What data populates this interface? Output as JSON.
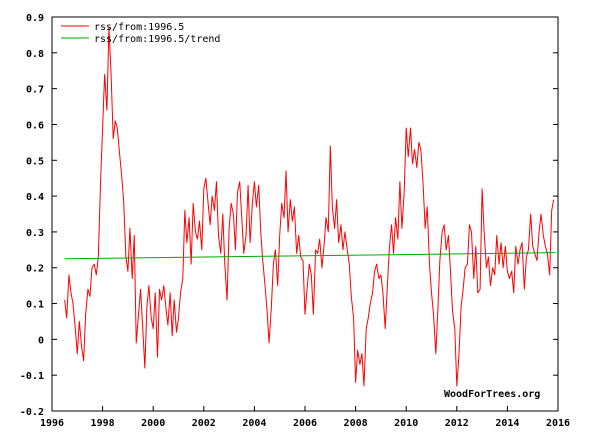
{
  "chart_data": {
    "type": "line",
    "title": "",
    "xlabel": "",
    "ylabel": "",
    "xlim": [
      1996,
      2016
    ],
    "ylim": [
      -0.2,
      0.9
    ],
    "x_ticks": [
      1996,
      1998,
      2000,
      2002,
      2004,
      2006,
      2008,
      2010,
      2012,
      2014,
      2016
    ],
    "y_ticks": [
      -0.2,
      -0.1,
      0,
      0.1,
      0.2,
      0.3,
      0.4,
      0.5,
      0.6,
      0.7,
      0.8,
      0.9
    ],
    "x_tick_labels": [
      "1996",
      "1998",
      "2000",
      "2002",
      "2004",
      "2006",
      "2008",
      "2010",
      "2012",
      "2014",
      "2016"
    ],
    "y_tick_labels": [
      "-0.2",
      "-0.1",
      "0",
      "0.1",
      "0.2",
      "0.3",
      "0.4",
      "0.5",
      "0.6",
      "0.7",
      "0.8",
      "0.9"
    ],
    "grid": false,
    "legend_position": "top-left",
    "annotation": "WoodForTrees.org",
    "series": [
      {
        "name": "rss/from:1996.5",
        "color": "#ff0000",
        "points": [
          [
            1996.5,
            0.11
          ],
          [
            1996.58,
            0.06
          ],
          [
            1996.67,
            0.18
          ],
          [
            1996.75,
            0.13
          ],
          [
            1996.83,
            0.1
          ],
          [
            1996.92,
            0.03
          ],
          [
            1997.0,
            -0.04
          ],
          [
            1997.08,
            0.05
          ],
          [
            1997.17,
            -0.02
          ],
          [
            1997.25,
            -0.06
          ],
          [
            1997.33,
            0.07
          ],
          [
            1997.42,
            0.14
          ],
          [
            1997.5,
            0.12
          ],
          [
            1997.58,
            0.2
          ],
          [
            1997.67,
            0.21
          ],
          [
            1997.75,
            0.18
          ],
          [
            1997.83,
            0.23
          ],
          [
            1997.92,
            0.44
          ],
          [
            1998.0,
            0.59
          ],
          [
            1998.08,
            0.74
          ],
          [
            1998.17,
            0.64
          ],
          [
            1998.25,
            0.87
          ],
          [
            1998.33,
            0.75
          ],
          [
            1998.42,
            0.56
          ],
          [
            1998.5,
            0.61
          ],
          [
            1998.58,
            0.59
          ],
          [
            1998.67,
            0.52
          ],
          [
            1998.75,
            0.46
          ],
          [
            1998.83,
            0.39
          ],
          [
            1998.92,
            0.23
          ],
          [
            1999.0,
            0.19
          ],
          [
            1999.08,
            0.31
          ],
          [
            1999.17,
            0.17
          ],
          [
            1999.25,
            0.29
          ],
          [
            1999.33,
            -0.01
          ],
          [
            1999.42,
            0.07
          ],
          [
            1999.5,
            0.14
          ],
          [
            1999.58,
            0.04
          ],
          [
            1999.67,
            -0.08
          ],
          [
            1999.75,
            0.09
          ],
          [
            1999.83,
            0.15
          ],
          [
            1999.92,
            0.06
          ],
          [
            2000.0,
            0.03
          ],
          [
            2000.08,
            0.13
          ],
          [
            2000.17,
            -0.05
          ],
          [
            2000.25,
            0.14
          ],
          [
            2000.33,
            0.11
          ],
          [
            2000.42,
            0.15
          ],
          [
            2000.5,
            0.09
          ],
          [
            2000.58,
            0.04
          ],
          [
            2000.67,
            0.13
          ],
          [
            2000.75,
            0.01
          ],
          [
            2000.83,
            0.11
          ],
          [
            2000.92,
            0.02
          ],
          [
            2001.0,
            0.06
          ],
          [
            2001.08,
            0.13
          ],
          [
            2001.17,
            0.17
          ],
          [
            2001.25,
            0.36
          ],
          [
            2001.33,
            0.27
          ],
          [
            2001.42,
            0.34
          ],
          [
            2001.5,
            0.21
          ],
          [
            2001.58,
            0.38
          ],
          [
            2001.67,
            0.3
          ],
          [
            2001.75,
            0.28
          ],
          [
            2001.83,
            0.33
          ],
          [
            2001.92,
            0.25
          ],
          [
            2002.0,
            0.42
          ],
          [
            2002.08,
            0.45
          ],
          [
            2002.17,
            0.38
          ],
          [
            2002.25,
            0.32
          ],
          [
            2002.33,
            0.4
          ],
          [
            2002.42,
            0.36
          ],
          [
            2002.5,
            0.44
          ],
          [
            2002.58,
            0.29
          ],
          [
            2002.67,
            0.24
          ],
          [
            2002.75,
            0.35
          ],
          [
            2002.83,
            0.21
          ],
          [
            2002.92,
            0.11
          ],
          [
            2003.0,
            0.31
          ],
          [
            2003.08,
            0.38
          ],
          [
            2003.17,
            0.35
          ],
          [
            2003.25,
            0.25
          ],
          [
            2003.33,
            0.41
          ],
          [
            2003.42,
            0.44
          ],
          [
            2003.5,
            0.34
          ],
          [
            2003.58,
            0.24
          ],
          [
            2003.67,
            0.29
          ],
          [
            2003.75,
            0.43
          ],
          [
            2003.83,
            0.27
          ],
          [
            2003.92,
            0.38
          ],
          [
            2004.0,
            0.44
          ],
          [
            2004.08,
            0.37
          ],
          [
            2004.17,
            0.43
          ],
          [
            2004.25,
            0.3
          ],
          [
            2004.33,
            0.22
          ],
          [
            2004.42,
            0.15
          ],
          [
            2004.5,
            0.08
          ],
          [
            2004.58,
            -0.01
          ],
          [
            2004.67,
            0.09
          ],
          [
            2004.75,
            0.21
          ],
          [
            2004.83,
            0.25
          ],
          [
            2004.92,
            0.15
          ],
          [
            2005.0,
            0.29
          ],
          [
            2005.08,
            0.38
          ],
          [
            2005.17,
            0.34
          ],
          [
            2005.25,
            0.47
          ],
          [
            2005.33,
            0.3
          ],
          [
            2005.42,
            0.39
          ],
          [
            2005.5,
            0.33
          ],
          [
            2005.58,
            0.37
          ],
          [
            2005.67,
            0.24
          ],
          [
            2005.75,
            0.29
          ],
          [
            2005.83,
            0.23
          ],
          [
            2005.92,
            0.22
          ],
          [
            2006.0,
            0.07
          ],
          [
            2006.08,
            0.14
          ],
          [
            2006.17,
            0.21
          ],
          [
            2006.25,
            0.18
          ],
          [
            2006.33,
            0.07
          ],
          [
            2006.42,
            0.25
          ],
          [
            2006.5,
            0.24
          ],
          [
            2006.58,
            0.28
          ],
          [
            2006.67,
            0.2
          ],
          [
            2006.75,
            0.26
          ],
          [
            2006.83,
            0.34
          ],
          [
            2006.92,
            0.3
          ],
          [
            2007.0,
            0.54
          ],
          [
            2007.08,
            0.37
          ],
          [
            2007.17,
            0.31
          ],
          [
            2007.25,
            0.39
          ],
          [
            2007.33,
            0.27
          ],
          [
            2007.42,
            0.32
          ],
          [
            2007.5,
            0.25
          ],
          [
            2007.58,
            0.3
          ],
          [
            2007.67,
            0.25
          ],
          [
            2007.75,
            0.21
          ],
          [
            2007.83,
            0.12
          ],
          [
            2007.92,
            0.06
          ],
          [
            2008.0,
            -0.12
          ],
          [
            2008.08,
            -0.03
          ],
          [
            2008.17,
            -0.07
          ],
          [
            2008.25,
            -0.04
          ],
          [
            2008.33,
            -0.13
          ],
          [
            2008.42,
            0.03
          ],
          [
            2008.5,
            0.06
          ],
          [
            2008.58,
            0.1
          ],
          [
            2008.67,
            0.13
          ],
          [
            2008.75,
            0.19
          ],
          [
            2008.83,
            0.21
          ],
          [
            2008.92,
            0.17
          ],
          [
            2009.0,
            0.18
          ],
          [
            2009.08,
            0.13
          ],
          [
            2009.17,
            0.03
          ],
          [
            2009.25,
            0.14
          ],
          [
            2009.33,
            0.25
          ],
          [
            2009.42,
            0.32
          ],
          [
            2009.5,
            0.24
          ],
          [
            2009.58,
            0.34
          ],
          [
            2009.67,
            0.28
          ],
          [
            2009.75,
            0.44
          ],
          [
            2009.83,
            0.31
          ],
          [
            2009.92,
            0.41
          ],
          [
            2010.0,
            0.59
          ],
          [
            2010.08,
            0.51
          ],
          [
            2010.17,
            0.59
          ],
          [
            2010.25,
            0.49
          ],
          [
            2010.33,
            0.53
          ],
          [
            2010.42,
            0.48
          ],
          [
            2010.5,
            0.55
          ],
          [
            2010.58,
            0.53
          ],
          [
            2010.67,
            0.43
          ],
          [
            2010.75,
            0.31
          ],
          [
            2010.83,
            0.37
          ],
          [
            2010.92,
            0.21
          ],
          [
            2011.0,
            0.13
          ],
          [
            2011.08,
            0.07
          ],
          [
            2011.17,
            -0.04
          ],
          [
            2011.25,
            0.08
          ],
          [
            2011.33,
            0.22
          ],
          [
            2011.42,
            0.3
          ],
          [
            2011.5,
            0.32
          ],
          [
            2011.58,
            0.25
          ],
          [
            2011.67,
            0.29
          ],
          [
            2011.75,
            0.19
          ],
          [
            2011.83,
            0.08
          ],
          [
            2011.92,
            0.03
          ],
          [
            2012.0,
            -0.13
          ],
          [
            2012.08,
            -0.05
          ],
          [
            2012.17,
            0.09
          ],
          [
            2012.25,
            0.14
          ],
          [
            2012.33,
            0.2
          ],
          [
            2012.42,
            0.21
          ],
          [
            2012.5,
            0.32
          ],
          [
            2012.58,
            0.3
          ],
          [
            2012.67,
            0.17
          ],
          [
            2012.75,
            0.26
          ],
          [
            2012.83,
            0.13
          ],
          [
            2012.92,
            0.14
          ],
          [
            2013.0,
            0.42
          ],
          [
            2013.08,
            0.3
          ],
          [
            2013.17,
            0.2
          ],
          [
            2013.25,
            0.23
          ],
          [
            2013.33,
            0.15
          ],
          [
            2013.42,
            0.2
          ],
          [
            2013.5,
            0.18
          ],
          [
            2013.58,
            0.29
          ],
          [
            2013.67,
            0.21
          ],
          [
            2013.75,
            0.27
          ],
          [
            2013.83,
            0.2
          ],
          [
            2013.92,
            0.26
          ],
          [
            2014.0,
            0.19
          ],
          [
            2014.08,
            0.17
          ],
          [
            2014.17,
            0.19
          ],
          [
            2014.25,
            0.13
          ],
          [
            2014.33,
            0.26
          ],
          [
            2014.42,
            0.21
          ],
          [
            2014.5,
            0.25
          ],
          [
            2014.58,
            0.27
          ],
          [
            2014.67,
            0.14
          ],
          [
            2014.75,
            0.23
          ],
          [
            2014.83,
            0.25
          ],
          [
            2014.92,
            0.35
          ],
          [
            2015.0,
            0.26
          ],
          [
            2015.08,
            0.24
          ],
          [
            2015.17,
            0.22
          ],
          [
            2015.25,
            0.3
          ],
          [
            2015.33,
            0.35
          ],
          [
            2015.42,
            0.29
          ],
          [
            2015.5,
            0.26
          ],
          [
            2015.58,
            0.24
          ],
          [
            2015.67,
            0.18
          ],
          [
            2015.75,
            0.36
          ],
          [
            2015.83,
            0.39
          ]
        ]
      },
      {
        "name": "rss/from:1996.5/trend",
        "color": "#00aa00",
        "points": [
          [
            1996.5,
            0.225
          ],
          [
            2015.9,
            0.242
          ]
        ]
      }
    ]
  }
}
